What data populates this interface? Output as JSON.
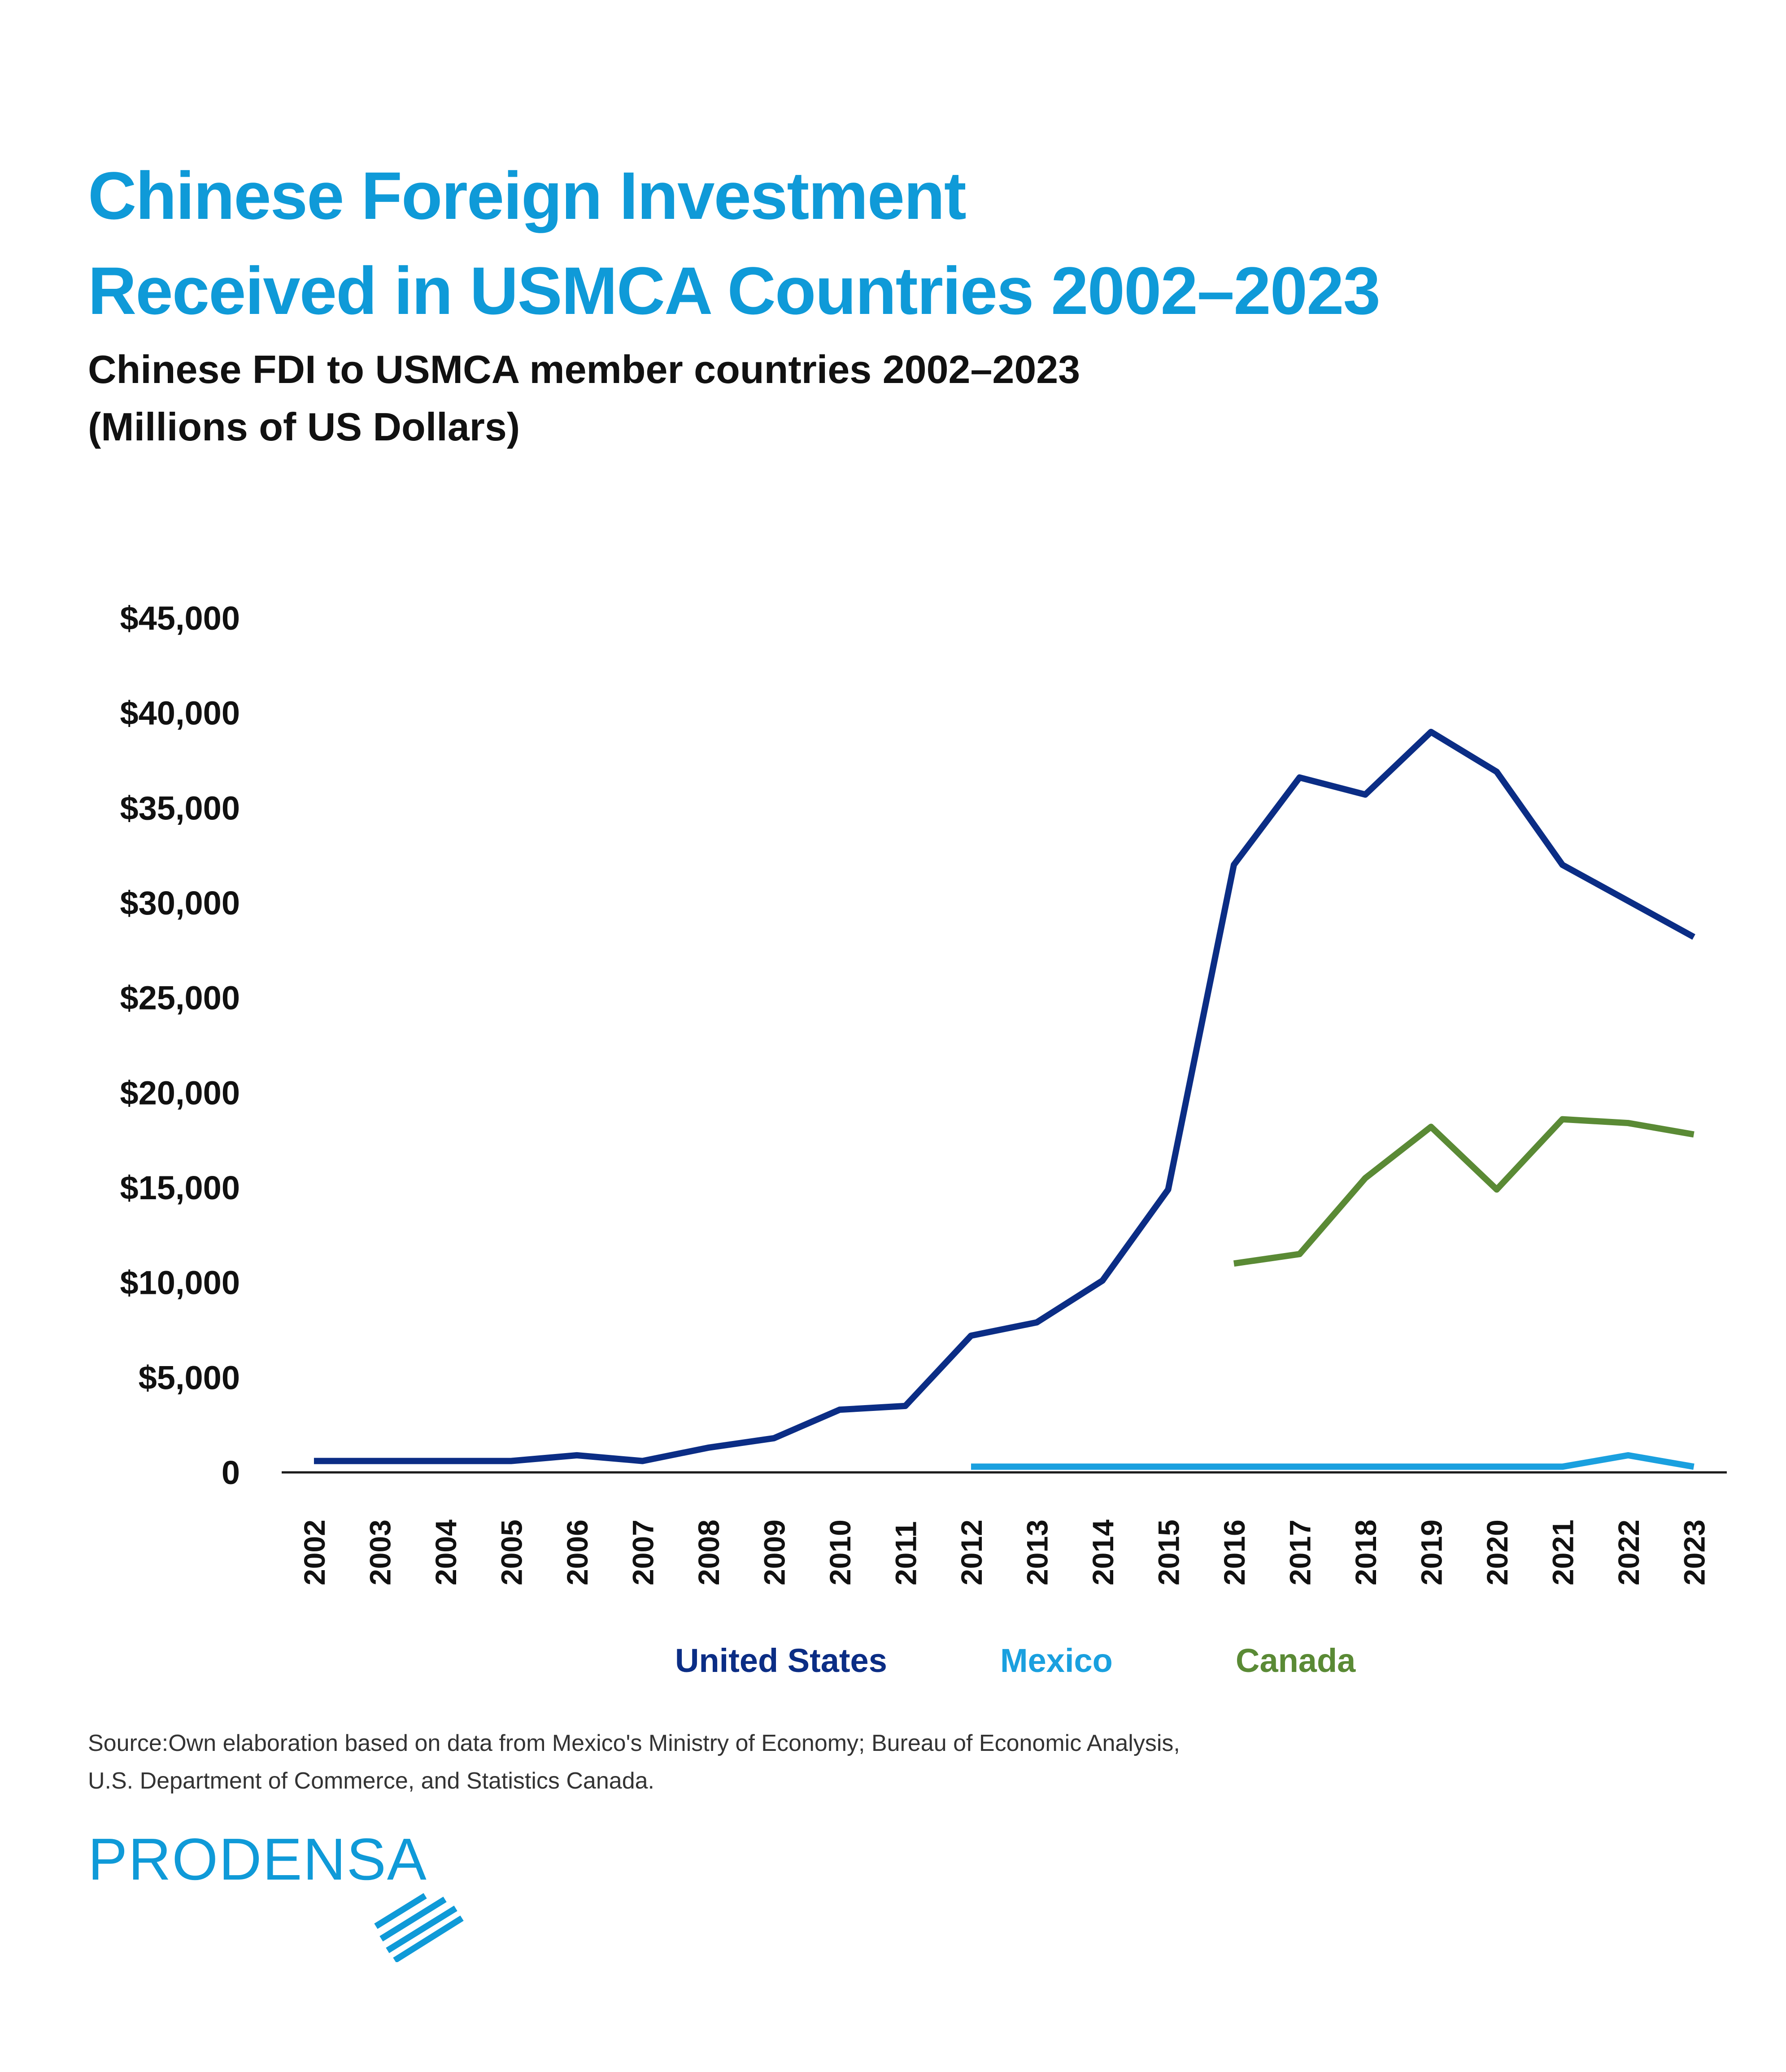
{
  "title": {
    "line1": "Chinese Foreign Investment",
    "line2": "Received in USMCA Countries 2002–2023"
  },
  "subtitle": {
    "line1": "Chinese FDI to USMCA member countries 2002–2023",
    "line2": "(Millions of US Dollars)"
  },
  "colors": {
    "title": "#0f9ad8",
    "united_states": "#0b2d85",
    "mexico": "#1aa0df",
    "canada": "#5a8a35"
  },
  "chart_data": {
    "type": "line",
    "title": "Chinese FDI to USMCA member countries 2002–2023",
    "ylabel": "(Millions of US Dollars)",
    "xlabel": "",
    "ylim": [
      0,
      45000
    ],
    "yticks": [
      0,
      5000,
      10000,
      15000,
      20000,
      25000,
      30000,
      35000,
      40000,
      45000
    ],
    "ytick_labels": [
      "0",
      "$5,000",
      "$10,000",
      "$15,000",
      "$20,000",
      "$25,000",
      "$30,000",
      "$35,000",
      "$40,000",
      "$45,000"
    ],
    "x": [
      "2002",
      "2003",
      "2004",
      "2005",
      "2006",
      "2007",
      "2008",
      "2009",
      "2010",
      "2011",
      "2012",
      "2013",
      "2014",
      "2015",
      "2016",
      "2017",
      "2018",
      "2019",
      "2020",
      "2021",
      "2022",
      "2023"
    ],
    "grid": false,
    "legend_position": "bottom",
    "series": [
      {
        "name": "United States",
        "color": "#0b2d85",
        "values": [
          600,
          600,
          600,
          600,
          900,
          600,
          1300,
          1800,
          3300,
          3500,
          7200,
          7900,
          10100,
          14900,
          32000,
          36600,
          35700,
          39000,
          36900,
          32000,
          30100,
          28200
        ]
      },
      {
        "name": "Mexico",
        "color": "#1aa0df",
        "values": [
          null,
          null,
          null,
          null,
          null,
          null,
          null,
          null,
          null,
          null,
          300,
          300,
          300,
          300,
          300,
          300,
          300,
          300,
          300,
          300,
          900,
          300
        ]
      },
      {
        "name": "Canada",
        "color": "#5a8a35",
        "values": [
          null,
          null,
          null,
          null,
          null,
          null,
          null,
          null,
          null,
          null,
          null,
          null,
          null,
          null,
          11000,
          11500,
          15500,
          18200,
          14900,
          18600,
          18400,
          17800
        ]
      }
    ]
  },
  "source": {
    "line1": "Source:Own elaboration based on data from Mexico's Ministry of Economy; Bureau of Economic Analysis,",
    "line2": "U.S. Department of Commerce, and Statistics Canada."
  },
  "logo": {
    "text": "PRODENSA",
    "icon": "diagonal-stripes-icon"
  }
}
